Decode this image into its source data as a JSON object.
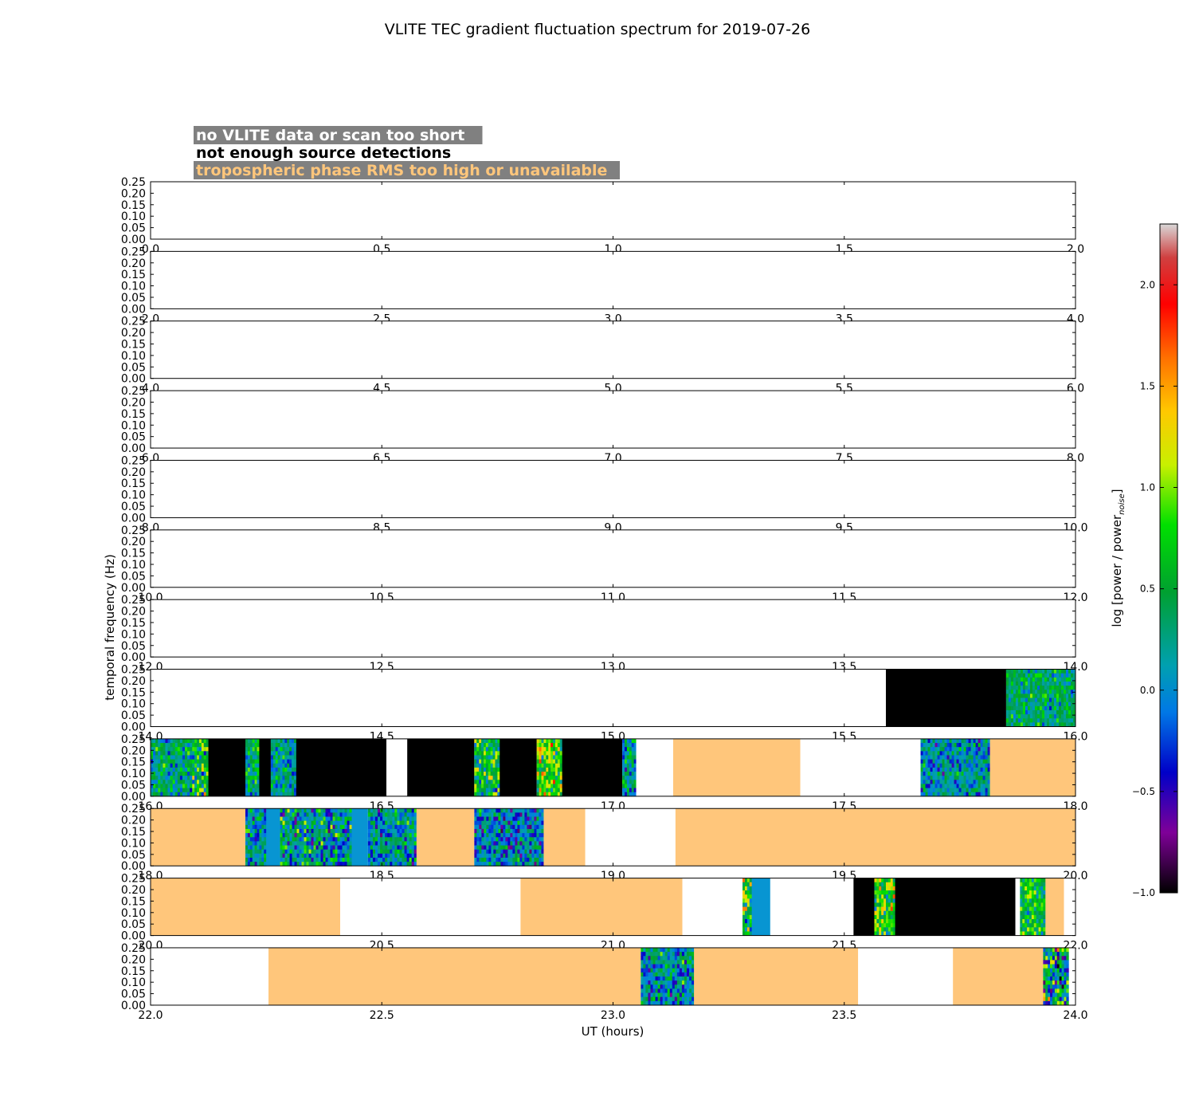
{
  "chart_data": {
    "type": "heatmap",
    "title": "VLITE TEC gradient fluctuation spectrum for 2019-07-26",
    "xlabel": "UT (hours)",
    "ylabel": "temporal frequency (Hz)",
    "yticks": [
      "0.00",
      "0.05",
      "0.10",
      "0.15",
      "0.20",
      "0.25"
    ],
    "ylim": [
      0,
      0.25
    ],
    "legend": [
      {
        "label": "no VLITE data or scan too short",
        "text_color": "#ffffff",
        "bg_color": "#808080"
      },
      {
        "label": "not enough source detections",
        "text_color": "#000000",
        "bg_color": "#ffffff"
      },
      {
        "label": "tropospheric phase RMS too high or unavailable",
        "text_color": "#ffc67b",
        "bg_color": "#808080"
      }
    ],
    "colorbar": {
      "label": "log [power / power",
      "label_subscript": "noise",
      "label_end": "]",
      "range": [
        -1.0,
        2.3
      ],
      "ticks": [
        "-1.0",
        "-0.5",
        "0.0",
        "0.5",
        "1.0",
        "1.5",
        "2.0"
      ],
      "tick_values": [
        -1.0,
        -0.5,
        0.0,
        0.5,
        1.0,
        1.5,
        2.0
      ]
    },
    "colors": {
      "trop": "#ffc67b",
      "nodetect": "#000000",
      "nodata": "#ffffff",
      "uniform": "#0895d2"
    },
    "panels": [
      {
        "xlim": [
          0,
          2
        ],
        "xticks": [
          "0.0",
          "0.5",
          "1.0",
          "1.5",
          "2.0"
        ],
        "segments": []
      },
      {
        "xlim": [
          2,
          4
        ],
        "xticks": [
          "2.0",
          "2.5",
          "3.0",
          "3.5",
          "4.0"
        ],
        "segments": []
      },
      {
        "xlim": [
          4,
          6
        ],
        "xticks": [
          "4.0",
          "4.5",
          "5.0",
          "5.5",
          "6.0"
        ],
        "segments": []
      },
      {
        "xlim": [
          6,
          8
        ],
        "xticks": [
          "6.0",
          "6.5",
          "7.0",
          "7.5",
          "8.0"
        ],
        "segments": []
      },
      {
        "xlim": [
          8,
          10
        ],
        "xticks": [
          "8.0",
          "8.5",
          "9.0",
          "9.5",
          "10.0"
        ],
        "segments": []
      },
      {
        "xlim": [
          10,
          12
        ],
        "xticks": [
          "10.0",
          "10.5",
          "11.0",
          "11.5",
          "12.0"
        ],
        "segments": []
      },
      {
        "xlim": [
          12,
          14
        ],
        "xticks": [
          "12.0",
          "12.5",
          "13.0",
          "13.5",
          "14.0"
        ],
        "segments": []
      },
      {
        "xlim": [
          14,
          16
        ],
        "xticks": [
          "14.0",
          "14.5",
          "15.0",
          "15.5",
          "16.0"
        ],
        "segments": [
          {
            "start": 15.59,
            "end": 15.85,
            "kind": "nodetect"
          },
          {
            "start": 15.85,
            "end": 16.0,
            "kind": "spec",
            "mean": 0.35,
            "spread": 0.25
          }
        ]
      },
      {
        "xlim": [
          16,
          18
        ],
        "xticks": [
          "16.0",
          "16.5",
          "17.0",
          "17.5",
          "18.0"
        ],
        "segments": [
          {
            "start": 16.0,
            "end": 16.09,
            "kind": "spec",
            "mean": 0.3,
            "spread": 0.3
          },
          {
            "start": 16.09,
            "end": 16.125,
            "kind": "spec",
            "mean": 0.55,
            "spread": 0.4
          },
          {
            "start": 16.125,
            "end": 16.205,
            "kind": "nodetect"
          },
          {
            "start": 16.205,
            "end": 16.235,
            "kind": "spec",
            "mean": 0.3,
            "spread": 0.35
          },
          {
            "start": 16.235,
            "end": 16.26,
            "kind": "nodetect"
          },
          {
            "start": 16.26,
            "end": 16.315,
            "kind": "spec",
            "mean": 0.15,
            "spread": 0.3
          },
          {
            "start": 16.315,
            "end": 16.51,
            "kind": "nodetect"
          },
          {
            "start": 16.51,
            "end": 16.555,
            "kind": "nodata"
          },
          {
            "start": 16.555,
            "end": 16.7,
            "kind": "nodetect"
          },
          {
            "start": 16.7,
            "end": 16.755,
            "kind": "spec",
            "mean": 0.55,
            "spread": 0.4
          },
          {
            "start": 16.755,
            "end": 16.835,
            "kind": "nodetect"
          },
          {
            "start": 16.835,
            "end": 16.89,
            "kind": "spec",
            "mean": 0.85,
            "spread": 0.4
          },
          {
            "start": 16.89,
            "end": 17.02,
            "kind": "nodetect"
          },
          {
            "start": 17.02,
            "end": 17.05,
            "kind": "spec",
            "mean": 0.2,
            "spread": 0.3
          },
          {
            "start": 17.05,
            "end": 17.13,
            "kind": "nodata"
          },
          {
            "start": 17.13,
            "end": 17.405,
            "kind": "trop"
          },
          {
            "start": 17.405,
            "end": 17.665,
            "kind": "nodata"
          },
          {
            "start": 17.665,
            "end": 17.815,
            "kind": "spec",
            "mean": 0.1,
            "spread": 0.3
          },
          {
            "start": 17.815,
            "end": 18.0,
            "kind": "trop"
          }
        ]
      },
      {
        "xlim": [
          18,
          20
        ],
        "xticks": [
          "18.0",
          "18.5",
          "19.0",
          "19.5",
          "20.0"
        ],
        "segments": [
          {
            "start": 18.0,
            "end": 18.205,
            "kind": "trop"
          },
          {
            "start": 18.205,
            "end": 18.25,
            "kind": "spec",
            "mean": 0.15,
            "spread": 0.35
          },
          {
            "start": 18.25,
            "end": 18.28,
            "kind": "uniform"
          },
          {
            "start": 18.28,
            "end": 18.435,
            "kind": "spec",
            "mean": 0.2,
            "spread": 0.4
          },
          {
            "start": 18.435,
            "end": 18.47,
            "kind": "uniform"
          },
          {
            "start": 18.47,
            "end": 18.575,
            "kind": "spec",
            "mean": 0.1,
            "spread": 0.35
          },
          {
            "start": 18.575,
            "end": 18.7,
            "kind": "trop"
          },
          {
            "start": 18.7,
            "end": 18.85,
            "kind": "spec",
            "mean": 0.0,
            "spread": 0.35
          },
          {
            "start": 18.85,
            "end": 18.94,
            "kind": "trop"
          },
          {
            "start": 18.94,
            "end": 19.135,
            "kind": "nodata"
          },
          {
            "start": 19.135,
            "end": 20.0,
            "kind": "trop"
          }
        ]
      },
      {
        "xlim": [
          20,
          22
        ],
        "xticks": [
          "20.0",
          "20.5",
          "21.0",
          "21.5",
          "22.0"
        ],
        "segments": [
          {
            "start": 20.0,
            "end": 20.41,
            "kind": "trop"
          },
          {
            "start": 20.41,
            "end": 20.8,
            "kind": "nodata"
          },
          {
            "start": 20.8,
            "end": 21.15,
            "kind": "trop"
          },
          {
            "start": 21.15,
            "end": 21.28,
            "kind": "nodata"
          },
          {
            "start": 21.28,
            "end": 21.3,
            "kind": "spec",
            "mean": 0.7,
            "spread": 0.45
          },
          {
            "start": 21.3,
            "end": 21.34,
            "kind": "uniform"
          },
          {
            "start": 21.34,
            "end": 21.52,
            "kind": "nodata"
          },
          {
            "start": 21.52,
            "end": 21.565,
            "kind": "nodetect"
          },
          {
            "start": 21.565,
            "end": 21.61,
            "kind": "spec",
            "mean": 0.75,
            "spread": 0.4
          },
          {
            "start": 21.61,
            "end": 21.87,
            "kind": "nodetect"
          },
          {
            "start": 21.87,
            "end": 21.88,
            "kind": "nodata"
          },
          {
            "start": 21.88,
            "end": 21.935,
            "kind": "spec",
            "mean": 0.6,
            "spread": 0.35
          },
          {
            "start": 21.935,
            "end": 21.975,
            "kind": "trop"
          }
        ]
      },
      {
        "xlim": [
          22,
          24
        ],
        "xticks": [
          "22.0",
          "22.5",
          "23.0",
          "23.5",
          "24.0"
        ],
        "segments": [
          {
            "start": 22.0,
            "end": 22.255,
            "kind": "nodata"
          },
          {
            "start": 22.255,
            "end": 23.06,
            "kind": "trop"
          },
          {
            "start": 23.06,
            "end": 23.175,
            "kind": "spec",
            "mean": 0.1,
            "spread": 0.35
          },
          {
            "start": 23.175,
            "end": 23.53,
            "kind": "trop"
          },
          {
            "start": 23.53,
            "end": 23.735,
            "kind": "nodata"
          },
          {
            "start": 23.735,
            "end": 23.93,
            "kind": "trop"
          },
          {
            "start": 23.93,
            "end": 23.985,
            "kind": "spec",
            "mean": 0.3,
            "spread": 0.6
          }
        ]
      }
    ]
  }
}
